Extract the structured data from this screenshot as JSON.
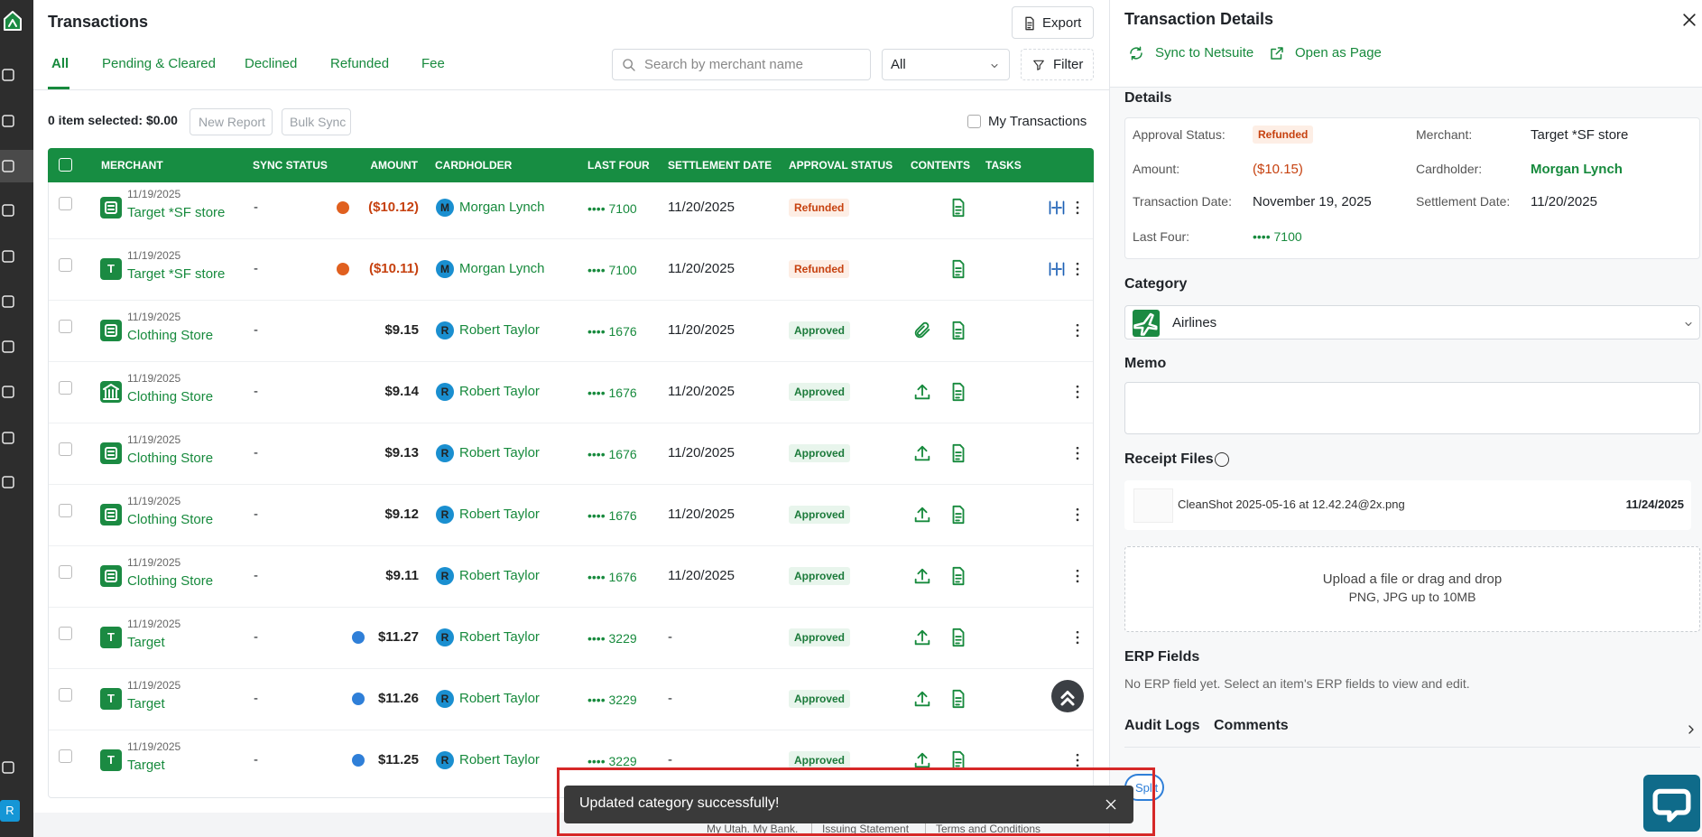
{
  "sidebar": {
    "avatar": "R"
  },
  "header": {
    "title": "Transactions",
    "export": "Export"
  },
  "tabs": [
    "All",
    "Pending & Cleared",
    "Declined",
    "Refunded",
    "Fee"
  ],
  "search": {
    "placeholder": "Search by merchant name"
  },
  "filter_select": "All",
  "filter_button": "Filter",
  "toolbar": {
    "selected": "0 item selected: $0.00",
    "new_report": "New Report",
    "bulk_sync": "Bulk Sync",
    "my_transactions": "My Transactions"
  },
  "table": {
    "columns": [
      "MERCHANT",
      "SYNC STATUS",
      "AMOUNT",
      "CARDHOLDER",
      "LAST FOUR",
      "SETTLEMENT DATE",
      "APPROVAL STATUS",
      "CONTENTS",
      "TASKS"
    ],
    "rows": [
      {
        "date": "11/19/2025",
        "merchant": "Target *SF store",
        "sync": "-",
        "amount": "($10.12)",
        "initial": "M",
        "cardholder": "Morgan Lynch",
        "last_four": "•••• 7100",
        "settlement": "11/20/2025",
        "status": "Refunded"
      },
      {
        "date": "11/19/2025",
        "icon_letter": "T",
        "merchant": "Target *SF store",
        "sync": "-",
        "amount": "($10.11)",
        "initial": "M",
        "cardholder": "Morgan Lynch",
        "last_four": "•••• 7100",
        "settlement": "11/20/2025",
        "status": "Refunded"
      },
      {
        "date": "11/19/2025",
        "merchant": "Clothing Store",
        "sync": "-",
        "amount": "$9.15",
        "initial": "R",
        "cardholder": "Robert Taylor",
        "last_four": "•••• 1676",
        "settlement": "11/20/2025",
        "status": "Approved"
      },
      {
        "date": "11/19/2025",
        "merchant": "Clothing Store",
        "sync": "-",
        "amount": "$9.14",
        "initial": "R",
        "cardholder": "Robert Taylor",
        "last_four": "•••• 1676",
        "settlement": "11/20/2025",
        "status": "Approved"
      },
      {
        "date": "11/19/2025",
        "merchant": "Clothing Store",
        "sync": "-",
        "amount": "$9.13",
        "initial": "R",
        "cardholder": "Robert Taylor",
        "last_four": "•••• 1676",
        "settlement": "11/20/2025",
        "status": "Approved"
      },
      {
        "date": "11/19/2025",
        "merchant": "Clothing Store",
        "sync": "-",
        "amount": "$9.12",
        "initial": "R",
        "cardholder": "Robert Taylor",
        "last_four": "•••• 1676",
        "settlement": "11/20/2025",
        "status": "Approved"
      },
      {
        "date": "11/19/2025",
        "merchant": "Clothing Store",
        "sync": "-",
        "amount": "$9.11",
        "initial": "R",
        "cardholder": "Robert Taylor",
        "last_four": "•••• 1676",
        "settlement": "11/20/2025",
        "status": "Approved"
      },
      {
        "date": "11/19/2025",
        "icon_letter": "T",
        "merchant": "Target",
        "sync": "-",
        "amount": "$11.27",
        "initial": "R",
        "cardholder": "Robert Taylor",
        "last_four": "•••• 3229",
        "settlement": "-",
        "status": "Approved"
      },
      {
        "date": "11/19/2025",
        "icon_letter": "T",
        "merchant": "Target",
        "sync": "-",
        "amount": "$11.26",
        "initial": "R",
        "cardholder": "Robert Taylor",
        "last_four": "•••• 3229",
        "settlement": "-",
        "status": "Approved"
      },
      {
        "date": "11/19/2025",
        "icon_letter": "T",
        "merchant": "Target",
        "sync": "-",
        "amount": "$11.25",
        "initial": "R",
        "cardholder": "Robert Taylor",
        "last_four": "•••• 3229",
        "settlement": "-",
        "status": "Approved"
      }
    ]
  },
  "footer": {
    "links": [
      "My Utah. My Bank.",
      "Issuing Statement",
      "Terms and Conditions"
    ]
  },
  "toast": {
    "message": "Updated category successfully!"
  },
  "details": {
    "title": "Transaction Details",
    "sync": "Sync to Netsuite",
    "open": "Open as Page",
    "section": "Details",
    "fields": [
      {
        "label": "Approval Status:",
        "value": "Refunded"
      },
      {
        "label": "Merchant:",
        "value": "Target *SF store"
      },
      {
        "label": "Amount:",
        "value": "($10.15)"
      },
      {
        "label": "Cardholder:",
        "value": "Morgan Lynch"
      },
      {
        "label": "Transaction Date:",
        "value": "November 19, 2025"
      },
      {
        "label": "Settlement Date:",
        "value": "11/20/2025"
      },
      {
        "label": "Last Four:",
        "value": "•••• 7100"
      }
    ],
    "category": {
      "label": "Category",
      "value": "Airlines"
    },
    "memo": {
      "label": "Memo"
    },
    "receipts": {
      "label": "Receipt Files",
      "file": "CleanShot 2025-05-16 at 12.42.24@2x.png",
      "date": "11/24/2025",
      "upload": "Upload a file or drag and drop",
      "formats": "PNG, JPG up to 10MB"
    },
    "erp": {
      "label": "ERP Fields",
      "empty": "No ERP field yet. Select an item's ERP fields to view and edit."
    },
    "tabs": [
      "Audit Logs",
      "Comments"
    ],
    "split": "Split"
  }
}
